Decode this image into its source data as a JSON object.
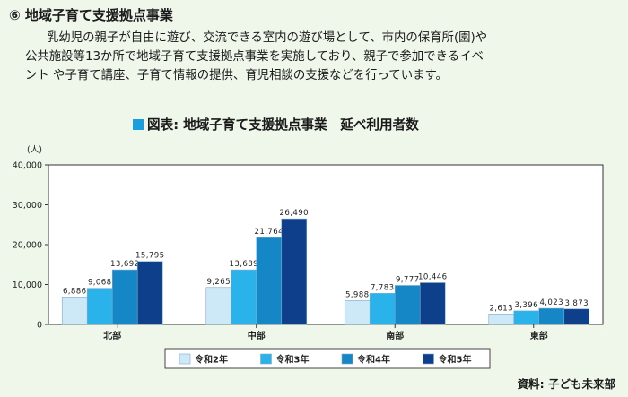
{
  "heading": "⑥ 地域子育て支援拠点事業",
  "paragraph": [
    "乳幼児の親子が自由に遊び、交流できる室内の遊び場として、市内の保育所(園)や",
    "公共施設等13か所で地域子育て支援拠点事業を実施しており、親子で参加できるイベ",
    "ント や子育て講座、子育て情報の提供、育児相談の支援などを行っています。"
  ],
  "chart_title": "図表: 地域子育て支援拠点事業　延べ利用者数",
  "source": "資料: 子ども未来部",
  "chart_data": {
    "type": "bar",
    "unit_label": "(人)",
    "categories": [
      "北部",
      "中部",
      "南部",
      "東部"
    ],
    "series": [
      {
        "name": "令和2年",
        "color": "#cde9f7",
        "values": [
          6886,
          9265,
          5988,
          2613
        ],
        "labels": [
          "6,886",
          "9,265",
          "5,988",
          "2,613"
        ]
      },
      {
        "name": "令和3年",
        "color": "#2ab3ea",
        "values": [
          9068,
          13689,
          7783,
          3396
        ],
        "labels": [
          "9,068",
          "13,689",
          "7,783",
          "3,396"
        ]
      },
      {
        "name": "令和4年",
        "color": "#1587c6",
        "values": [
          13692,
          21764,
          9777,
          4023
        ],
        "labels": [
          "13,692",
          "21,764",
          "9,777",
          "4,023"
        ]
      },
      {
        "name": "令和5年",
        "color": "#0e3f8a",
        "values": [
          15795,
          26490,
          10446,
          3873
        ],
        "labels": [
          "15,795",
          "26,490",
          "10,446",
          "3,873"
        ]
      }
    ],
    "yticks": [
      "0",
      "10,000",
      "20,000",
      "30,000",
      "40,000"
    ],
    "ylim": [
      0,
      40000
    ],
    "grid": false,
    "legend_position": "bottom"
  }
}
